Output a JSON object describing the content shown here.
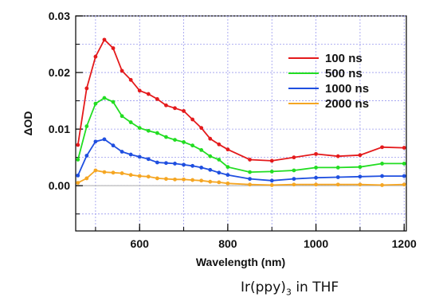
{
  "chart_data": {
    "type": "line",
    "xlabel": "Wavelength (nm)",
    "ylabel": "ΔOD",
    "xlim": [
      455,
      1205
    ],
    "ylim": [
      -0.008,
      0.03
    ],
    "xticks": [
      "600",
      "800",
      "1000",
      "1200"
    ],
    "xtick_values": [
      600,
      800,
      1000,
      1200
    ],
    "yticks": [
      "0.00",
      "0.01",
      "0.02",
      "0.03"
    ],
    "ytick_values": [
      0.0,
      0.01,
      0.02,
      0.03
    ],
    "grid": true,
    "legend_position": "top-right",
    "x": [
      460,
      480,
      500,
      520,
      540,
      560,
      580,
      600,
      620,
      640,
      660,
      680,
      700,
      720,
      740,
      760,
      780,
      800,
      850,
      900,
      950,
      1000,
      1050,
      1100,
      1150,
      1200
    ],
    "series": [
      {
        "name": "100 ns",
        "color": "#e41a1c",
        "values": [
          0.0072,
          0.0172,
          0.0228,
          0.0258,
          0.0243,
          0.0203,
          0.0187,
          0.0168,
          0.0162,
          0.0153,
          0.0142,
          0.0137,
          0.0132,
          0.0117,
          0.0102,
          0.0083,
          0.0073,
          0.0064,
          0.0046,
          0.0044,
          0.005,
          0.0056,
          0.0052,
          0.0054,
          0.0068,
          0.0067
        ]
      },
      {
        "name": "500 ns",
        "color": "#22dd22",
        "values": [
          0.0046,
          0.0105,
          0.0145,
          0.0155,
          0.0148,
          0.0123,
          0.0112,
          0.0102,
          0.0097,
          0.0093,
          0.0086,
          0.0081,
          0.0077,
          0.0071,
          0.0063,
          0.0052,
          0.0046,
          0.0033,
          0.0024,
          0.0025,
          0.0027,
          0.0032,
          0.0032,
          0.0033,
          0.0039,
          0.0039
        ]
      },
      {
        "name": "1000 ns",
        "color": "#1f4fe0",
        "values": [
          0.0018,
          0.0053,
          0.0078,
          0.0082,
          0.0071,
          0.006,
          0.0055,
          0.0051,
          0.0047,
          0.0041,
          0.004,
          0.0039,
          0.0037,
          0.0035,
          0.0032,
          0.0028,
          0.0023,
          0.0019,
          0.0012,
          0.0009,
          0.0012,
          0.0014,
          0.0015,
          0.0016,
          0.0017,
          0.0017
        ]
      },
      {
        "name": "2000 ns",
        "color": "#f5a623",
        "values": [
          0.0005,
          0.0013,
          0.0027,
          0.0024,
          0.0023,
          0.0022,
          0.0019,
          0.0017,
          0.0016,
          0.0013,
          0.0012,
          0.0011,
          0.0011,
          0.001,
          0.0009,
          0.0007,
          0.0006,
          0.0004,
          0.0002,
          0.0001,
          0.0002,
          0.0002,
          0.0002,
          0.0002,
          0.0001,
          0.0002
        ]
      }
    ]
  },
  "caption": {
    "prefix": "Ir(ppy)",
    "subscript": "3",
    "suffix": " in THF"
  }
}
